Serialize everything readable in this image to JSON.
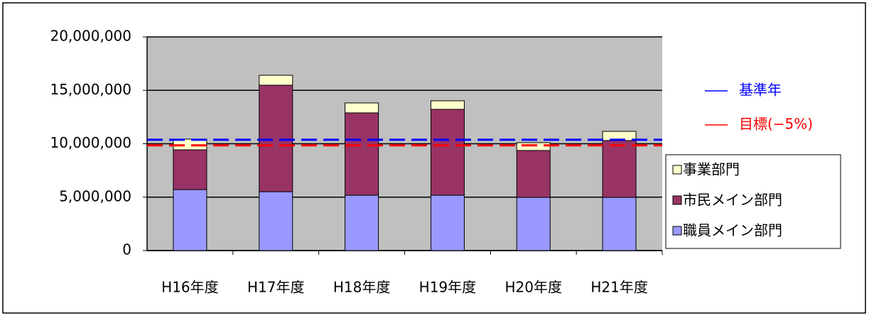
{
  "chart_data": {
    "type": "stacked_bar",
    "categories": [
      "H16年度",
      "H17年度",
      "H18年度",
      "H19年度",
      "H20年度",
      "H21年度"
    ],
    "series": [
      {
        "name": "職員メイン部門",
        "color": "#9999ff",
        "values": [
          5710000,
          5510000,
          5180000,
          5180000,
          4980000,
          4980000
        ]
      },
      {
        "name": "市民メイン部門",
        "color": "#993366",
        "values": [
          3720000,
          9970000,
          7710000,
          8040000,
          4390000,
          5320000
        ]
      },
      {
        "name": "事業部門",
        "color": "#ffffcc",
        "values": [
          1000000,
          930000,
          930000,
          800000,
          730000,
          860000
        ]
      }
    ],
    "reference_lines": [
      {
        "name": "基準年",
        "color": "#0000ff",
        "value": 10370000
      },
      {
        "name": "目標(−5%)",
        "color": "#ff0000",
        "value": 9850000
      }
    ],
    "ylim": [
      0,
      20000000
    ],
    "yticks": [
      0,
      {
        "value": 5000000,
        "label": "5,000,000"
      },
      {
        "value": 10000000,
        "label": "10,000,000"
      },
      {
        "value": 15000000,
        "label": "15,000,000"
      },
      {
        "value": 20000000,
        "label": "20,000,000"
      }
    ],
    "grid": true
  }
}
